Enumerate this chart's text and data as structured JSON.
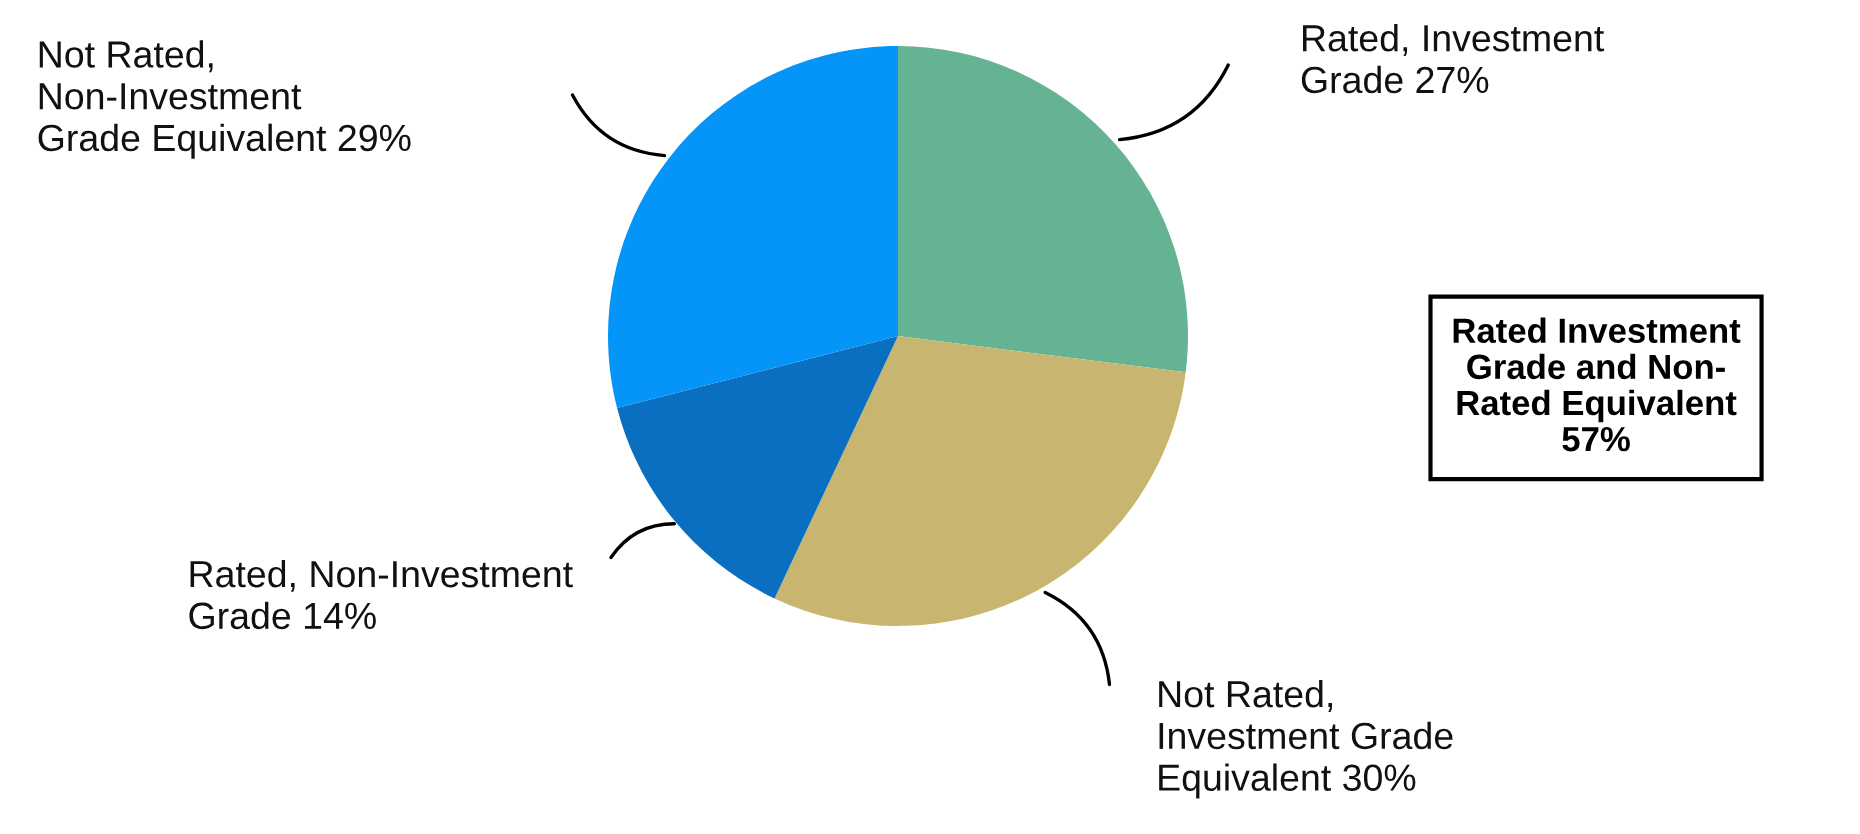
{
  "chart_data": {
    "type": "pie",
    "categories": [
      "Rated, Investment\nGrade",
      "Not Rated,\nInvestment Grade\nEquivalent",
      "Rated, Non-Investment\nGrade",
      "Not Rated,\nNon-Investment\nGrade Equivalent"
    ],
    "values": [
      27,
      30,
      14,
      29
    ],
    "value_labels": [
      "27%",
      "30%",
      "14%",
      "29%"
    ],
    "colors": [
      "#66b394",
      "#c8b670",
      "#0a6fc0",
      "#0594f8"
    ],
    "annotations": [
      "Rated Investment\nGrade and Non-\nRated Equivalent\n57%"
    ],
    "legend": false
  }
}
